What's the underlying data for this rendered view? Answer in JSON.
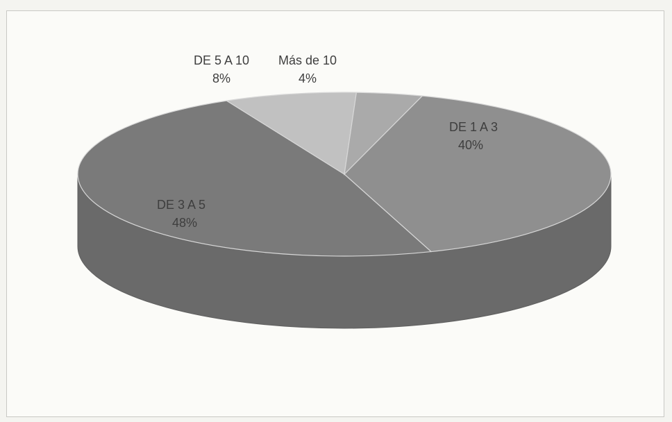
{
  "chart_data": {
    "type": "pie",
    "style": "3d",
    "title": "",
    "series": [
      {
        "values": [
          40,
          48,
          8,
          4
        ],
        "categories": [
          "DE 1 A 3",
          "DE 3 A 5",
          "DE 5 A 10",
          "Más de 10"
        ],
        "percent_labels": [
          "40%",
          "48%",
          "8%",
          "4%"
        ]
      }
    ],
    "legend": "none",
    "colors": {
      "DE 1 A 3": "#8f8f8f",
      "DE 3 A 5": "#7a7a7a",
      "DE 5 A 10": "#c1c1c1",
      "Más de 10": "#aaaaaa",
      "side": "#6a6a6a"
    }
  }
}
